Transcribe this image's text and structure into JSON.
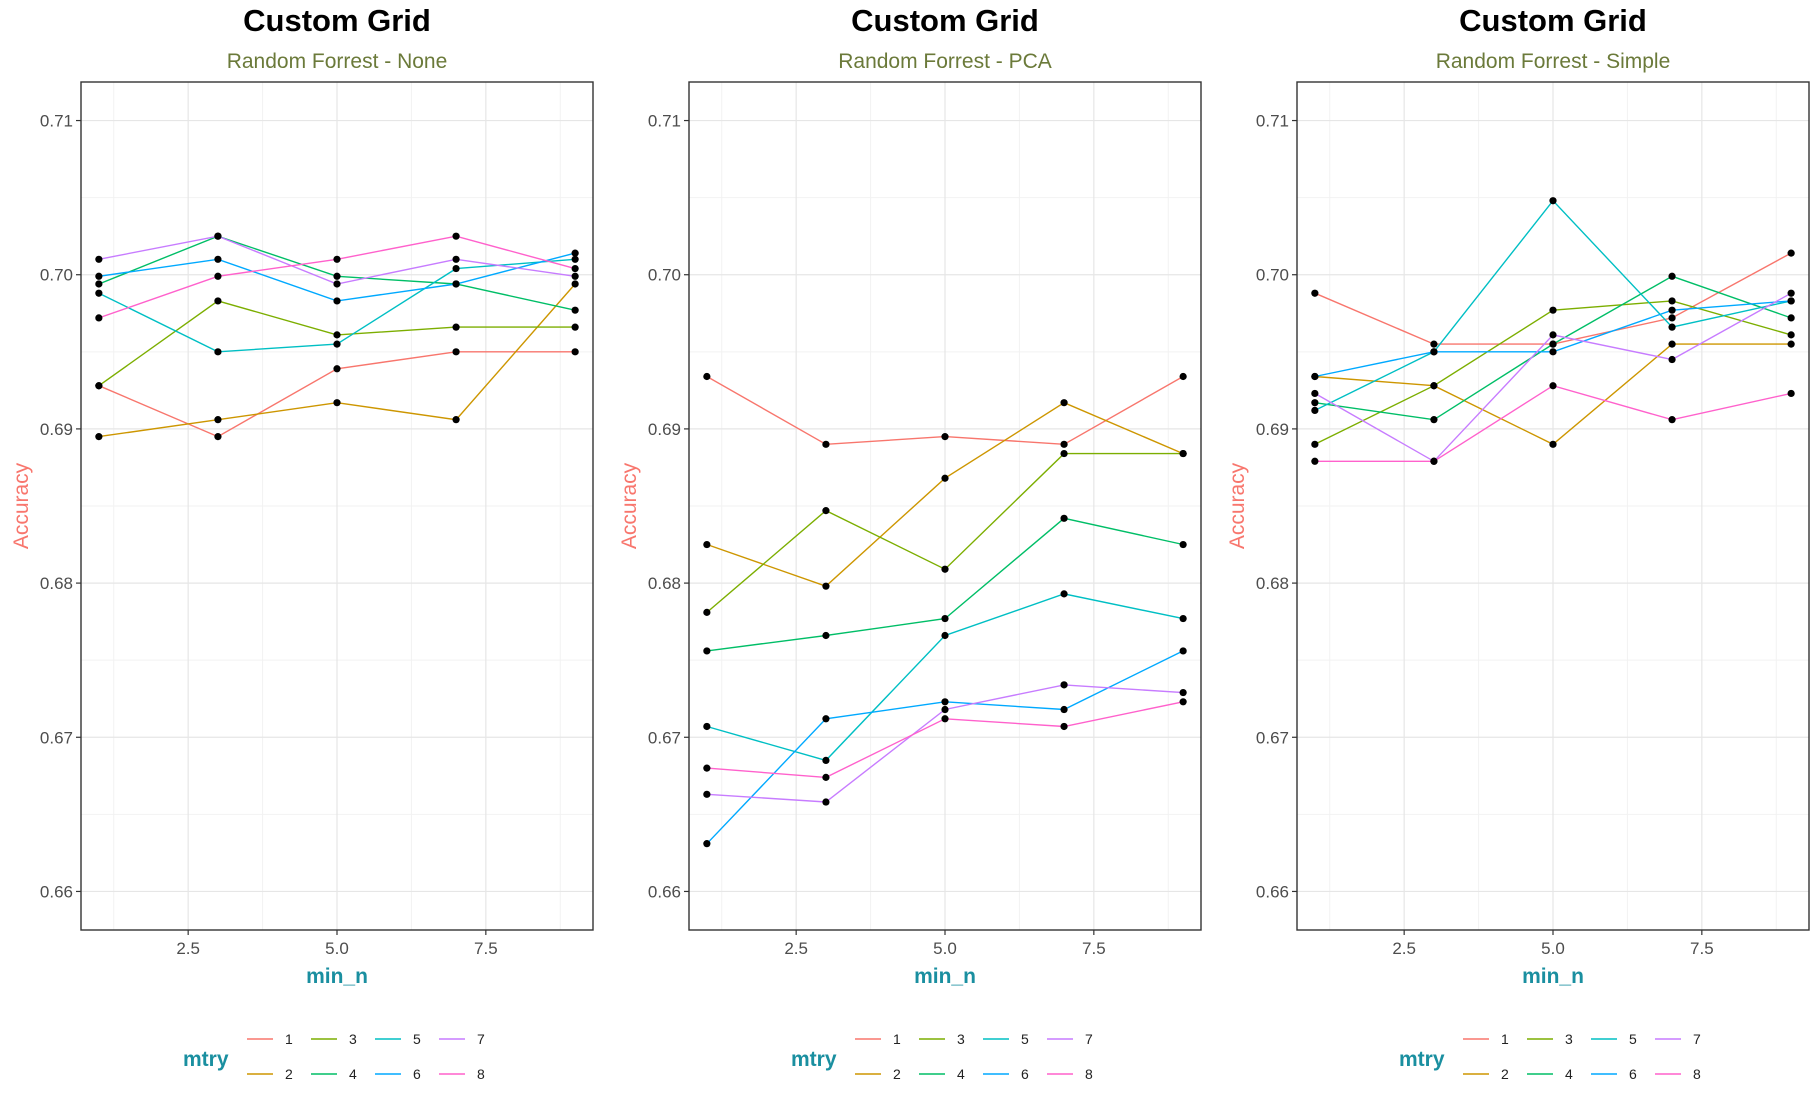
{
  "legend": {
    "title": "mtry",
    "position": "bottom"
  },
  "series_colors": {
    "1": "#F8766D",
    "2": "#CD9600",
    "3": "#7CAE00",
    "4": "#00BE67",
    "5": "#00BFC4",
    "6": "#00A9FF",
    "7": "#C77CFF",
    "8": "#FF61CC"
  },
  "point_color": "#000000",
  "chart_data": [
    {
      "type": "line",
      "title": "Custom Grid",
      "subtitle": "Random Forrest - None",
      "xlabel": "min_n",
      "ylabel": "Accuracy",
      "xlim": [
        0.7,
        9.3
      ],
      "ylim": [
        0.6575,
        0.7125
      ],
      "xticks": [
        "2.5",
        "5.0",
        "7.5"
      ],
      "yticks": [
        "0.66",
        "0.67",
        "0.68",
        "0.69",
        "0.70",
        "0.71"
      ],
      "grid": true,
      "x": [
        1,
        3,
        5,
        7,
        9
      ],
      "series": [
        {
          "name": "1",
          "values": [
            0.6928,
            0.6895,
            0.6939,
            0.695,
            0.695
          ]
        },
        {
          "name": "2",
          "values": [
            0.6895,
            0.6906,
            0.6917,
            0.6906,
            0.6994
          ]
        },
        {
          "name": "3",
          "values": [
            0.6928,
            0.6983,
            0.6961,
            0.6966,
            0.6966
          ]
        },
        {
          "name": "4",
          "values": [
            0.6994,
            0.7025,
            0.6999,
            0.6994,
            0.6977
          ]
        },
        {
          "name": "5",
          "values": [
            0.6988,
            0.695,
            0.6955,
            0.7004,
            0.701
          ]
        },
        {
          "name": "6",
          "values": [
            0.6999,
            0.701,
            0.6983,
            0.6994,
            0.7014
          ]
        },
        {
          "name": "7",
          "values": [
            0.701,
            0.7025,
            0.6994,
            0.701,
            0.6999
          ]
        },
        {
          "name": "8",
          "values": [
            0.6972,
            0.6999,
            0.701,
            0.7025,
            0.7004
          ]
        }
      ]
    },
    {
      "type": "line",
      "title": "Custom Grid",
      "subtitle": "Random Forrest - PCA",
      "xlabel": "min_n",
      "ylabel": "Accuracy",
      "xlim": [
        0.7,
        9.3
      ],
      "ylim": [
        0.6575,
        0.7125
      ],
      "xticks": [
        "2.5",
        "5.0",
        "7.5"
      ],
      "yticks": [
        "0.66",
        "0.67",
        "0.68",
        "0.69",
        "0.70",
        "0.71"
      ],
      "grid": true,
      "x": [
        1,
        3,
        5,
        7,
        9
      ],
      "series": [
        {
          "name": "1",
          "values": [
            0.6934,
            0.689,
            0.6895,
            0.689,
            0.6934
          ]
        },
        {
          "name": "2",
          "values": [
            0.6825,
            0.6798,
            0.6868,
            0.6917,
            0.6884
          ]
        },
        {
          "name": "3",
          "values": [
            0.6781,
            0.6847,
            0.6809,
            0.6884,
            0.6884
          ]
        },
        {
          "name": "4",
          "values": [
            0.6756,
            0.6766,
            0.6777,
            0.6842,
            0.6825
          ]
        },
        {
          "name": "5",
          "values": [
            0.6707,
            0.6685,
            0.6766,
            0.6793,
            0.6777
          ]
        },
        {
          "name": "6",
          "values": [
            0.6631,
            0.6712,
            0.6723,
            0.6718,
            0.6756
          ]
        },
        {
          "name": "7",
          "values": [
            0.6663,
            0.6658,
            0.6718,
            0.6734,
            0.6729
          ]
        },
        {
          "name": "8",
          "values": [
            0.668,
            0.6674,
            0.6712,
            0.6707,
            0.6723
          ]
        }
      ]
    },
    {
      "type": "line",
      "title": "Custom Grid",
      "subtitle": "Random Forrest - Simple",
      "xlabel": "min_n",
      "ylabel": "Accuracy",
      "xlim": [
        0.7,
        9.3
      ],
      "ylim": [
        0.6575,
        0.7125
      ],
      "xticks": [
        "2.5",
        "5.0",
        "7.5"
      ],
      "yticks": [
        "0.66",
        "0.67",
        "0.68",
        "0.69",
        "0.70",
        "0.71"
      ],
      "grid": true,
      "x": [
        1,
        3,
        5,
        7,
        9
      ],
      "series": [
        {
          "name": "1",
          "values": [
            0.6988,
            0.6955,
            0.6955,
            0.6972,
            0.7014
          ]
        },
        {
          "name": "2",
          "values": [
            0.6934,
            0.6928,
            0.689,
            0.6955,
            0.6955
          ]
        },
        {
          "name": "3",
          "values": [
            0.689,
            0.6928,
            0.6977,
            0.6983,
            0.6961
          ]
        },
        {
          "name": "4",
          "values": [
            0.6917,
            0.6906,
            0.6955,
            0.6999,
            0.6972
          ]
        },
        {
          "name": "5",
          "values": [
            0.6912,
            0.695,
            0.7048,
            0.6966,
            0.6983
          ]
        },
        {
          "name": "6",
          "values": [
            0.6934,
            0.695,
            0.695,
            0.6977,
            0.6983
          ]
        },
        {
          "name": "7",
          "values": [
            0.6923,
            0.6879,
            0.6961,
            0.6945,
            0.6988
          ]
        },
        {
          "name": "8",
          "values": [
            0.6879,
            0.6879,
            0.6928,
            0.6906,
            0.6923
          ]
        }
      ]
    }
  ]
}
